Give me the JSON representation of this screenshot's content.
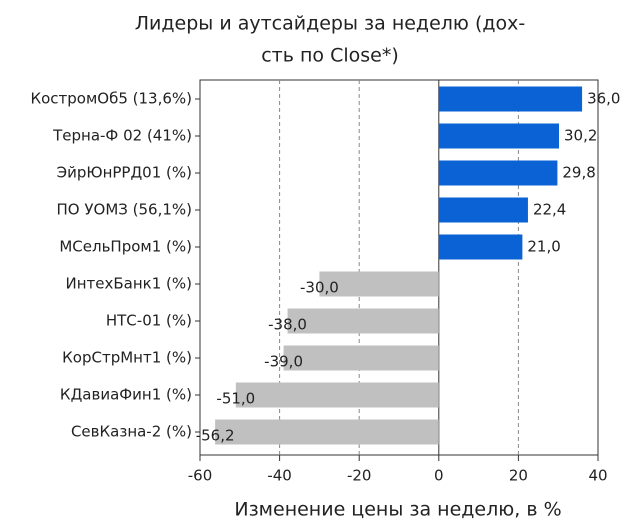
{
  "chart_data": {
    "type": "barh",
    "title": [
      "Лидеры и аутсайдеры за неделю (дох-",
      "сть по Close*)"
    ],
    "xlabel": "Изменение цены за неделю, в %",
    "categories": [
      "КостромОб5 (13,6%)",
      "Терна-Ф 02 (41%)",
      "ЭйрЮнРРД01 (%)",
      "ПО УОМЗ (56,1%)",
      "МСельПром1 (%)",
      "ИнтехБанк1 (%)",
      "НТС-01 (%)",
      "КорСтрМнт1 (%)",
      "КДавиаФин1 (%)",
      "СевКазна-2 (%)"
    ],
    "values": [
      36.0,
      30.2,
      29.8,
      22.4,
      21.0,
      -30.0,
      -38.0,
      -39.0,
      -51.0,
      -56.2
    ],
    "value_labels": [
      "36,0",
      "30,2",
      "29,8",
      "22,4",
      "21,0",
      "-30,0",
      "-38,0",
      "-39,0",
      "-51,0",
      "-56,2"
    ],
    "colors": [
      "#0a62d4",
      "#0a62d4",
      "#0a62d4",
      "#0a62d4",
      "#0a62d4",
      "#c0c0c0",
      "#c0c0c0",
      "#c0c0c0",
      "#c0c0c0",
      "#c0c0c0"
    ],
    "xlim": [
      -60,
      40
    ],
    "xticks": [
      -60,
      -40,
      -20,
      0,
      20,
      40
    ],
    "grid": true
  }
}
